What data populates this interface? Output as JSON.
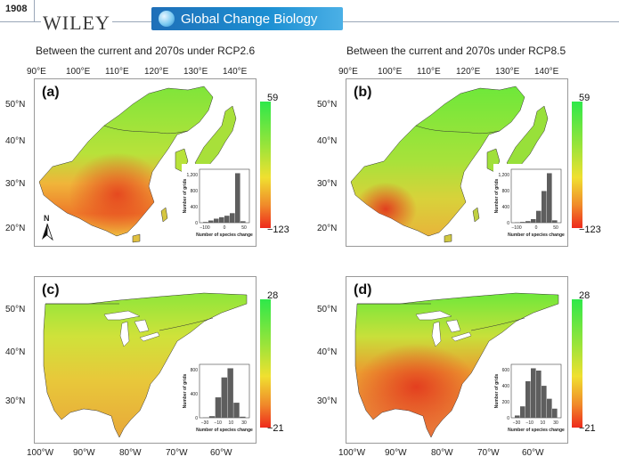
{
  "header": {
    "page_number": "1908",
    "publisher": "WILEY",
    "journal": "Global Change Biology"
  },
  "panels_top": {
    "left_title": "Between the current and 2070s under RCP2.6",
    "right_title": "Between the current and 2070s under RCP8.5",
    "x_ticks": [
      "90°E",
      "100°E",
      "110°E",
      "120°E",
      "130°E",
      "140°E"
    ],
    "y_ticks": [
      "50°N",
      "40°N",
      "30°N",
      "20°N"
    ],
    "colorbar_max": "59",
    "colorbar_min": "−123",
    "north_label": "N"
  },
  "panels_bottom": {
    "x_ticks": [
      "100°W",
      "90°W",
      "80°W",
      "70°W",
      "60°W"
    ],
    "y_ticks": [
      "50°N",
      "40°N",
      "30°N"
    ],
    "colorbar_max": "28",
    "colorbar_min": "−21"
  },
  "panels": {
    "a": {
      "letter": "(a)",
      "inset": {
        "xlabel": "Number of species change",
        "ylabel": "Number of grids",
        "xticks": [
          "−100",
          "0",
          "50"
        ],
        "yticks": [
          "0",
          "400",
          "800",
          "1,200"
        ],
        "bars": [
          20,
          60,
          110,
          150,
          190,
          260,
          1350,
          40
        ]
      }
    },
    "b": {
      "letter": "(b)",
      "inset": {
        "xlabel": "Number of species change",
        "ylabel": "Number of grids",
        "xticks": [
          "−100",
          "0",
          "50"
        ],
        "yticks": [
          "0",
          "400",
          "800",
          "1,200"
        ],
        "bars": [
          10,
          20,
          40,
          90,
          300,
          800,
          1250,
          60
        ]
      }
    },
    "c": {
      "letter": "(c)",
      "inset": {
        "xlabel": "Number of species change",
        "ylabel": "Number of grids",
        "xticks": [
          "−30",
          "−10",
          "10",
          "30"
        ],
        "yticks": [
          "0",
          "400",
          "800"
        ],
        "bars": [
          5,
          30,
          380,
          750,
          920,
          280,
          20
        ]
      }
    },
    "d": {
      "letter": "(d)",
      "inset": {
        "xlabel": "Number of species change",
        "ylabel": "Number of grids",
        "xticks": [
          "−30",
          "−10",
          "10",
          "30"
        ],
        "yticks": [
          "0",
          "200",
          "400",
          "600"
        ],
        "bars": [
          30,
          150,
          480,
          650,
          620,
          420,
          250,
          120
        ]
      }
    }
  },
  "colors": {
    "high": "#2ee84a",
    "mid": "#f0e030",
    "low": "#ee2a1c",
    "bar": "#5e5e5e"
  }
}
